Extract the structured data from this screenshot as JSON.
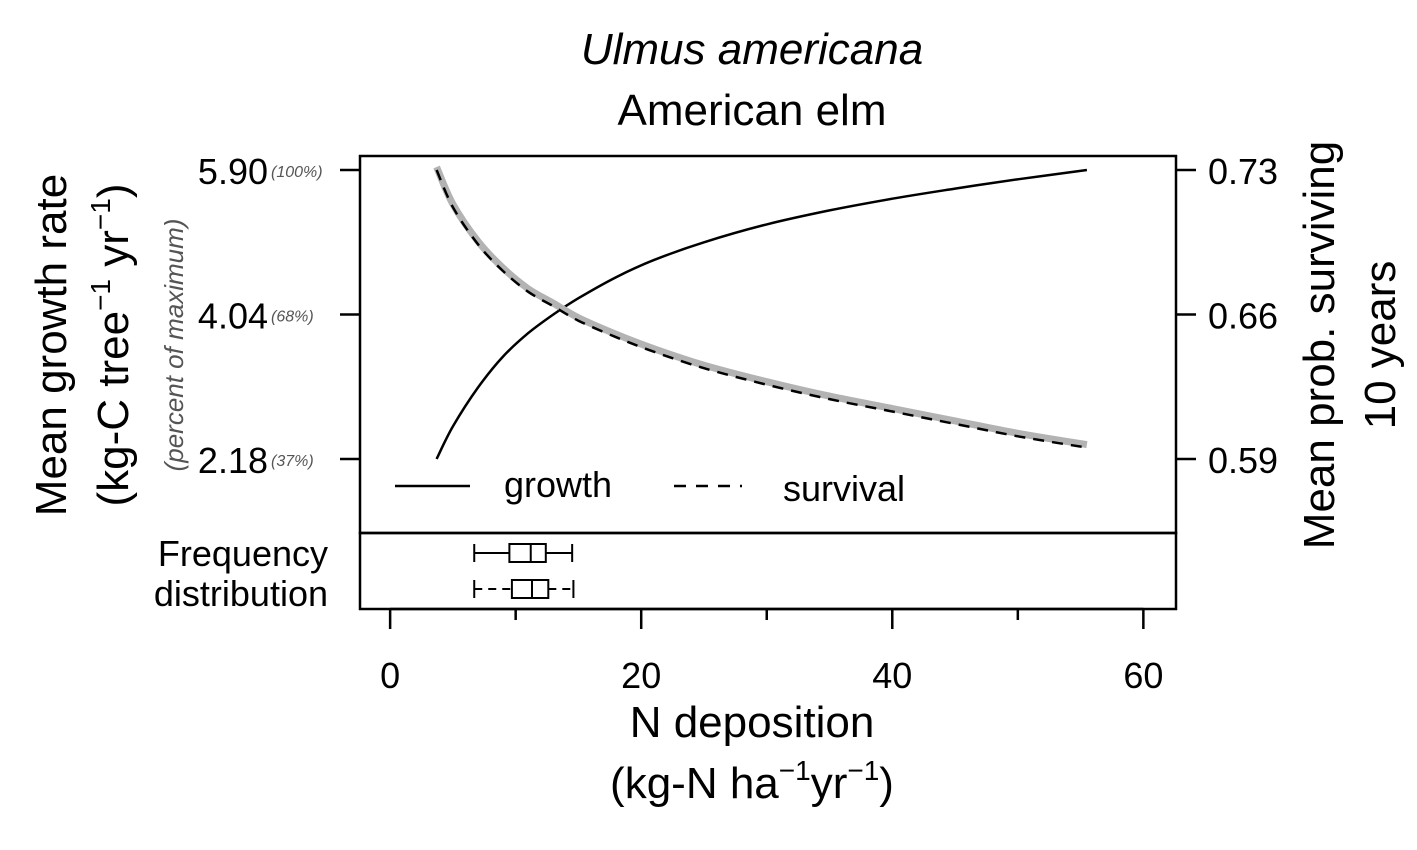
{
  "chart_data": {
    "type": "line",
    "title_italic": "Ulmus americana",
    "title": "American elm",
    "xlabel_line1": "N deposition",
    "xlabel_line2_parts": [
      "(kg-N ha",
      "−1",
      "yr",
      "−1",
      ")"
    ],
    "ylabel_left_line1": "Mean growth rate",
    "ylabel_left_line2_parts": [
      "(kg-C tree",
      "−1",
      " yr",
      "−1",
      ")"
    ],
    "ylabel_left_sub": "(percent of maximum)",
    "ylabel_right_line1": "Mean prob. surviving",
    "ylabel_right_line2": "10 years",
    "xlim": [
      -2.4,
      62.6
    ],
    "x_ticks": [
      0,
      20,
      40,
      60
    ],
    "x_tick_labels": [
      "0",
      "20",
      "40",
      "60"
    ],
    "x_minor_ticks": [
      10,
      30,
      50
    ],
    "left_axis": {
      "ticks": [
        2.18,
        4.04,
        5.9
      ],
      "labels": [
        "2.18",
        "4.04",
        "5.90"
      ],
      "percent_labels": [
        "(37%)",
        "(68%)",
        "(100%)"
      ]
    },
    "right_axis": {
      "ticks": [
        0.59,
        0.66,
        0.73
      ],
      "labels": [
        "0.59",
        "0.66",
        "0.73"
      ]
    },
    "legend": {
      "position": "bottom-left",
      "entries": [
        "growth",
        "survival"
      ]
    },
    "series": [
      {
        "name": "growth",
        "axis": "left",
        "style": "solid",
        "x": [
          3.7,
          5,
          7,
          9,
          11,
          13,
          15,
          18,
          21,
          25,
          30,
          35,
          40,
          45,
          50,
          55.5
        ],
        "y": [
          2.18,
          2.6,
          3.1,
          3.5,
          3.8,
          4.04,
          4.25,
          4.52,
          4.74,
          4.97,
          5.2,
          5.38,
          5.53,
          5.66,
          5.78,
          5.9
        ]
      },
      {
        "name": "survival",
        "axis": "right",
        "style": "dashed",
        "x": [
          3.7,
          5,
          7,
          9,
          11,
          13,
          15,
          18,
          21,
          25,
          30,
          35,
          40,
          45,
          50,
          55.5
        ],
        "y": [
          0.73,
          0.712,
          0.694,
          0.681,
          0.671,
          0.664,
          0.657,
          0.649,
          0.642,
          0.634,
          0.626,
          0.619,
          0.613,
          0.607,
          0.601,
          0.5955
        ],
        "band_color": "#b3b3b3"
      }
    ],
    "frequency_distribution": {
      "label_line1": "Frequency",
      "label_line2": "distribution",
      "boxplots": [
        {
          "min": 6.7,
          "q1": 9.5,
          "median": 11.2,
          "q3": 12.4,
          "max": 14.5,
          "whisker_style": "solid"
        },
        {
          "min": 6.7,
          "q1": 9.7,
          "median": 11.3,
          "q3": 12.6,
          "max": 14.6,
          "whisker_style": "dashed"
        }
      ]
    },
    "colors": {
      "line": "#000000",
      "band": "#b3b3b3",
      "percent_label": "#555555"
    }
  }
}
